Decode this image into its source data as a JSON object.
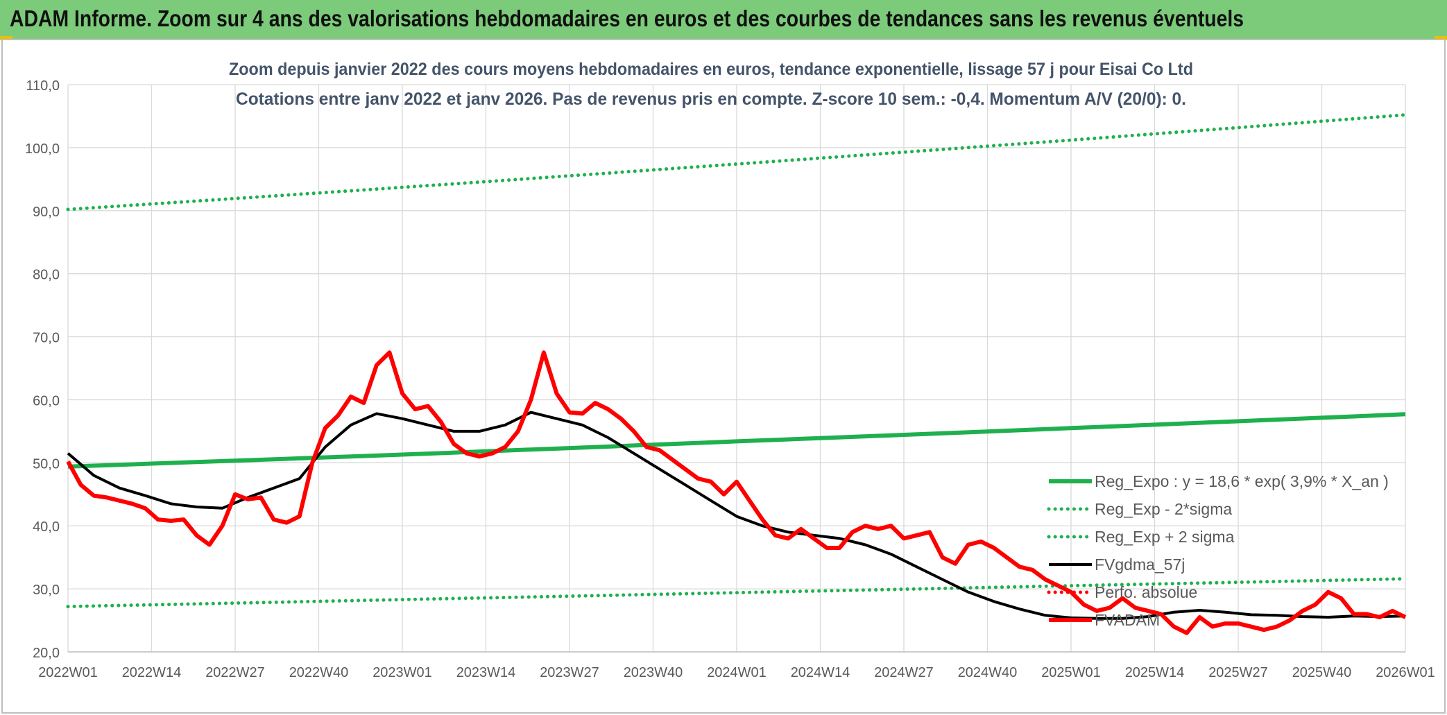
{
  "banner": {
    "title": "ADAM Informe. Zoom sur 4 ans des valorisations hebdomadaires en euros et des courbes de tendances sans les revenus éventuels"
  },
  "colors": {
    "banner_bg": "#7ccb7a",
    "trend_green": "#1fb04e",
    "price_red": "#ff0000",
    "smooth_black": "#000000",
    "title_text": "#44546a"
  },
  "chart_data": {
    "type": "line",
    "title": "Zoom depuis janvier 2022 des cours moyens hebdomadaires en euros, tendance exponentielle, lissage 57 j pour Eisai Co Ltd",
    "subtitle": "Cotations entre janv 2022 et janv 2026. Pas de revenus pris en compte. Z-score 10 sem.: -0,4. Momentum A/V (20/0): 0.",
    "xlabel": "",
    "ylabel": "",
    "ylim": [
      20,
      110
    ],
    "yticks": [
      "20,0",
      "30,0",
      "40,0",
      "50,0",
      "60,0",
      "70,0",
      "80,0",
      "90,0",
      "100,0",
      "110,0"
    ],
    "xticks": [
      "2022W01",
      "2022W14",
      "2022W27",
      "2022W40",
      "2023W01",
      "2023W14",
      "2023W27",
      "2023W40",
      "2024W01",
      "2024W14",
      "2024W27",
      "2024W40",
      "2025W01",
      "2025W14",
      "2025W27",
      "2025W40",
      "2026W01"
    ],
    "x_range_weeks": [
      0,
      208
    ],
    "grid": true,
    "legend_position": "bottom-right",
    "legend": [
      "Reg_Expo : y = 18,6 * exp( 3,9% *  X_an )",
      "Reg_Exp - 2*sigma",
      "Reg_Exp + 2 sigma",
      "FVgdma_57j",
      "Perfo. absolue",
      "FVADAM"
    ],
    "series": [
      {
        "name": "Reg_Expo : y = 18,6 * exp( 3,9% *  X_an )",
        "style": "solid-green",
        "x": [
          0,
          52,
          104,
          156,
          208
        ],
        "values": [
          49.4,
          51.3,
          53.4,
          55.5,
          57.7
        ]
      },
      {
        "name": "Reg_Exp - 2*sigma",
        "style": "dotted-green",
        "x": [
          0,
          52,
          104,
          156,
          208
        ],
        "values": [
          27.2,
          28.3,
          29.4,
          30.5,
          31.6
        ]
      },
      {
        "name": "Reg_Exp + 2 sigma",
        "style": "dotted-green",
        "x": [
          0,
          52,
          104,
          156,
          208
        ],
        "values": [
          90.2,
          93.7,
          97.4,
          101.2,
          105.2
        ]
      },
      {
        "name": "FVgdma_57j",
        "style": "solid-black",
        "x": [
          0,
          4,
          8,
          12,
          16,
          20,
          24,
          28,
          32,
          36,
          40,
          44,
          48,
          52,
          56,
          60,
          64,
          68,
          72,
          76,
          80,
          84,
          88,
          92,
          96,
          100,
          104,
          108,
          112,
          116,
          120,
          124,
          128,
          132,
          136,
          140,
          144,
          148,
          152,
          156,
          160,
          164,
          168,
          172,
          176,
          180,
          184,
          188,
          192,
          196,
          200,
          204,
          208
        ],
        "values": [
          51.5,
          48.0,
          46.0,
          44.8,
          43.5,
          43.0,
          42.8,
          44.5,
          46.0,
          47.5,
          52.5,
          56.0,
          57.8,
          57.0,
          56.0,
          55.0,
          55.0,
          56.0,
          58.0,
          57.0,
          56.0,
          54.0,
          51.5,
          49.0,
          46.5,
          44.0,
          41.5,
          40.0,
          39.0,
          38.5,
          38.0,
          37.0,
          35.5,
          33.5,
          31.5,
          29.5,
          28.0,
          26.8,
          25.8,
          25.4,
          25.3,
          25.3,
          25.6,
          26.3,
          26.6,
          26.3,
          25.9,
          25.8,
          25.6,
          25.5,
          25.7,
          25.6,
          25.7
        ]
      },
      {
        "name": "FVADAM",
        "style": "solid-red",
        "x": [
          0,
          2,
          4,
          6,
          8,
          10,
          12,
          14,
          16,
          18,
          20,
          22,
          24,
          26,
          28,
          30,
          32,
          34,
          36,
          38,
          40,
          42,
          44,
          46,
          48,
          50,
          52,
          54,
          56,
          58,
          60,
          62,
          64,
          66,
          68,
          70,
          72,
          74,
          76,
          78,
          80,
          82,
          84,
          86,
          88,
          90,
          92,
          94,
          96,
          98,
          100,
          102,
          104,
          106,
          108,
          110,
          112,
          114,
          116,
          118,
          120,
          122,
          124,
          126,
          128,
          130,
          132,
          134,
          136,
          138,
          140,
          142,
          144,
          146,
          148,
          150,
          152,
          154,
          156,
          158,
          160,
          162,
          164,
          166,
          168,
          170,
          172,
          174,
          176,
          178,
          180,
          182,
          184,
          186,
          188,
          190,
          192,
          194,
          196,
          198,
          200,
          202,
          204,
          206,
          208
        ],
        "values": [
          50.2,
          46.5,
          44.8,
          44.5,
          44.0,
          43.5,
          42.8,
          41.0,
          40.8,
          41.0,
          38.5,
          37.0,
          40.0,
          45.0,
          44.2,
          44.5,
          41.0,
          40.5,
          41.5,
          50.0,
          55.5,
          57.5,
          60.5,
          59.5,
          65.5,
          67.5,
          61.0,
          58.5,
          59.0,
          56.5,
          53.0,
          51.5,
          51.0,
          51.5,
          52.5,
          55.0,
          60.0,
          67.5,
          61.0,
          58.0,
          57.8,
          59.5,
          58.5,
          57.0,
          55.0,
          52.5,
          52.0,
          50.5,
          49.0,
          47.5,
          47.0,
          45.0,
          47.0,
          44.0,
          41.0,
          38.5,
          38.0,
          39.5,
          38.0,
          36.5,
          36.5,
          39.0,
          40.0,
          39.5,
          40.0,
          38.0,
          38.5,
          39.0,
          35.0,
          34.0,
          37.0,
          37.5,
          36.5,
          35.0,
          33.5,
          33.0,
          31.5,
          30.5,
          29.5,
          27.5,
          26.5,
          27.0,
          28.5,
          27.0,
          26.5,
          26.0,
          24.0,
          23.0,
          25.5,
          24.0,
          24.5,
          24.5,
          24.0,
          23.5,
          24.0,
          25.0,
          26.5,
          27.5,
          29.5,
          28.5,
          26.0,
          26.0,
          25.5,
          26.5,
          25.5
        ]
      }
    ]
  }
}
